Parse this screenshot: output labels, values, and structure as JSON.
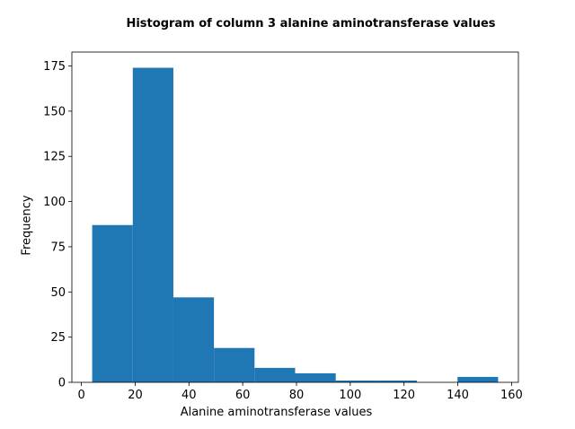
{
  "chart_data": {
    "type": "bar",
    "title": "Histogram of column 3 alanine aminotransferase values",
    "xlabel": "Alanine aminotransferase values",
    "ylabel": "Frequency",
    "bins": [
      {
        "start": 4.0,
        "end": 19.1,
        "count": 87
      },
      {
        "start": 19.1,
        "end": 34.2,
        "count": 174
      },
      {
        "start": 34.2,
        "end": 49.3,
        "count": 47
      },
      {
        "start": 49.3,
        "end": 64.4,
        "count": 19
      },
      {
        "start": 64.4,
        "end": 79.5,
        "count": 8
      },
      {
        "start": 79.5,
        "end": 94.6,
        "count": 5
      },
      {
        "start": 94.6,
        "end": 109.7,
        "count": 1
      },
      {
        "start": 109.7,
        "end": 124.8,
        "count": 1
      },
      {
        "start": 124.8,
        "end": 139.9,
        "count": 0
      },
      {
        "start": 139.9,
        "end": 155.0,
        "count": 3
      }
    ],
    "xlim": [
      -3.55,
      162.55
    ],
    "ylim": [
      0,
      182.7
    ],
    "xticks": [
      0,
      20,
      40,
      60,
      80,
      100,
      120,
      140,
      160
    ],
    "yticks": [
      0,
      25,
      50,
      75,
      100,
      125,
      150,
      175
    ],
    "bar_color": "#1f77b4",
    "grid": false,
    "legend": "none"
  }
}
